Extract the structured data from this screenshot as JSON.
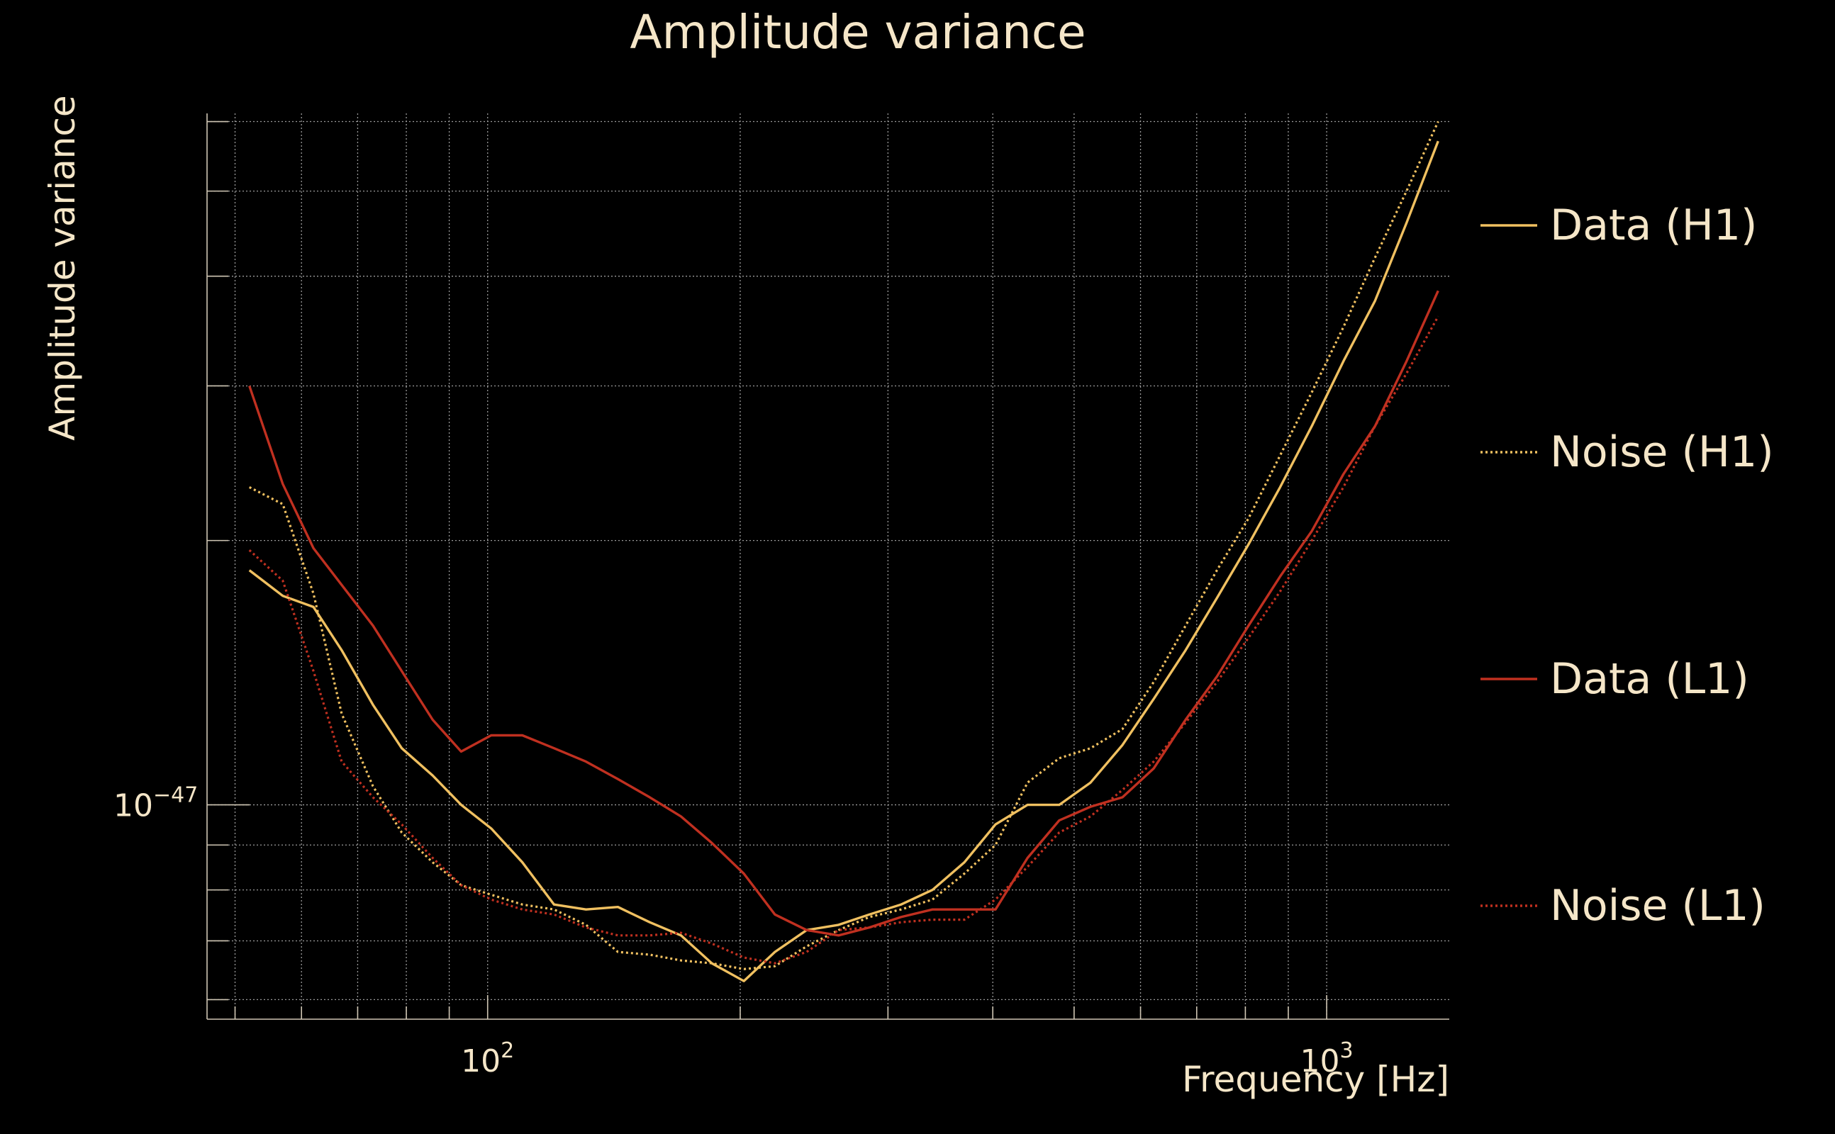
{
  "chart_data": {
    "type": "line",
    "title": "Amplitude variance",
    "xlabel": "Frequency [Hz]",
    "ylabel": "Amplitude variance",
    "xscale": "log",
    "yscale": "log",
    "xlim": [
      46.3,
      1400
    ],
    "ylim": [
      5.7e-48,
      6.13e-47
    ],
    "grid": true,
    "legend_position": "right",
    "x_tick_labels": [
      {
        "value": 100,
        "base": "10",
        "exp": "2"
      },
      {
        "value": 1000,
        "base": "10",
        "exp": "3"
      }
    ],
    "y_tick_labels": [
      {
        "value": 1e-47,
        "base": "10",
        "exp": "−47"
      }
    ],
    "x_minor_ticks": [
      50,
      60,
      70,
      80,
      90,
      200,
      300,
      400,
      500,
      600,
      700,
      800,
      900
    ],
    "y_minor_ticks": [
      6e-48,
      7e-48,
      8e-48,
      9e-48,
      2e-47,
      3e-47,
      4e-47,
      5e-47,
      6e-47
    ],
    "series": [
      {
        "name": "Data (H1)",
        "color": "#f0c060",
        "dash": "solid",
        "x": [
          52,
          57,
          62,
          67,
          73,
          79,
          86,
          93,
          101,
          110,
          120,
          131,
          143,
          156,
          170,
          185,
          202,
          220,
          240,
          262,
          285,
          311,
          339,
          370,
          403,
          440,
          480,
          523,
          571,
          622,
          679,
          740,
          807,
          880,
          960,
          1047,
          1142,
          1245,
          1358
        ],
        "y": [
          1.85e-47,
          1.73e-47,
          1.68e-47,
          1.5e-47,
          1.3e-47,
          1.16e-47,
          1.08e-47,
          1e-47,
          9.4e-48,
          8.6e-48,
          7.7e-48,
          7.6e-48,
          7.65e-48,
          7.35e-48,
          7.1e-48,
          6.6e-48,
          6.3e-48,
          6.8e-48,
          7.2e-48,
          7.3e-48,
          7.5e-48,
          7.7e-48,
          8e-48,
          8.6e-48,
          9.5e-48,
          1e-47,
          1e-47,
          1.06e-47,
          1.17e-47,
          1.32e-47,
          1.5e-47,
          1.72e-47,
          1.98e-47,
          2.3e-47,
          2.7e-47,
          3.2e-47,
          3.75e-47,
          4.6e-47,
          5.7e-47
        ]
      },
      {
        "name": "Noise (H1)",
        "color": "#f0c060",
        "dash": "dotted",
        "x": [
          52,
          57,
          62,
          67,
          73,
          79,
          86,
          93,
          101,
          110,
          120,
          131,
          143,
          156,
          170,
          185,
          202,
          220,
          240,
          262,
          285,
          311,
          339,
          370,
          403,
          440,
          480,
          523,
          571,
          622,
          679,
          740,
          807,
          880,
          960,
          1047,
          1142,
          1245,
          1358
        ],
        "y": [
          2.3e-47,
          2.2e-47,
          1.74e-47,
          1.27e-47,
          1.05e-47,
          9.3e-48,
          8.6e-48,
          8.1e-48,
          7.9e-48,
          7.7e-48,
          7.6e-48,
          7.3e-48,
          6.8e-48,
          6.75e-48,
          6.65e-48,
          6.6e-48,
          6.5e-48,
          6.55e-48,
          6.9e-48,
          7.2e-48,
          7.45e-48,
          7.6e-48,
          7.8e-48,
          8.35e-48,
          9e-48,
          1.06e-47,
          1.13e-47,
          1.16e-47,
          1.22e-47,
          1.38e-47,
          1.6e-47,
          1.85e-47,
          2.12e-47,
          2.5e-47,
          2.95e-47,
          3.5e-47,
          4.2e-47,
          5e-47,
          6e-47
        ]
      },
      {
        "name": "Data (L1)",
        "color": "#c03020",
        "dash": "solid",
        "x": [
          52,
          57,
          62,
          67,
          73,
          79,
          86,
          93,
          101,
          110,
          120,
          131,
          143,
          156,
          170,
          185,
          202,
          220,
          240,
          262,
          285,
          311,
          339,
          370,
          403,
          440,
          480,
          523,
          571,
          622,
          679,
          740,
          807,
          880,
          960,
          1047,
          1142,
          1245,
          1358
        ],
        "y": [
          3e-47,
          2.32e-47,
          1.96e-47,
          1.78e-47,
          1.6e-47,
          1.42e-47,
          1.25e-47,
          1.15e-47,
          1.2e-47,
          1.2e-47,
          1.16e-47,
          1.12e-47,
          1.07e-47,
          1.02e-47,
          9.7e-48,
          9.05e-48,
          8.35e-48,
          7.5e-48,
          7.2e-48,
          7.1e-48,
          7.25e-48,
          7.45e-48,
          7.6e-48,
          7.6e-48,
          7.6e-48,
          8.7e-48,
          9.6e-48,
          9.95e-48,
          1.02e-47,
          1.1e-47,
          1.25e-47,
          1.4e-47,
          1.6e-47,
          1.82e-47,
          2.05e-47,
          2.38e-47,
          2.7e-47,
          3.2e-47,
          3.85e-47
        ]
      },
      {
        "name": "Noise (L1)",
        "color": "#c03020",
        "dash": "dotted",
        "x": [
          52,
          57,
          62,
          67,
          73,
          79,
          86,
          93,
          101,
          110,
          120,
          131,
          143,
          156,
          170,
          185,
          202,
          220,
          240,
          262,
          285,
          311,
          339,
          370,
          403,
          440,
          480,
          523,
          571,
          622,
          679,
          740,
          807,
          880,
          960,
          1047,
          1142,
          1245,
          1358
        ],
        "y": [
          1.95e-47,
          1.8e-47,
          1.42e-47,
          1.12e-47,
          1.02e-47,
          9.5e-48,
          8.7e-48,
          8.1e-48,
          7.8e-48,
          7.6e-48,
          7.5e-48,
          7.25e-48,
          7.1e-48,
          7.1e-48,
          7.15e-48,
          6.95e-48,
          6.7e-48,
          6.6e-48,
          6.8e-48,
          7.2e-48,
          7.25e-48,
          7.35e-48,
          7.4e-48,
          7.4e-48,
          7.8e-48,
          8.5e-48,
          9.3e-48,
          9.7e-48,
          1.04e-47,
          1.12e-47,
          1.24e-47,
          1.38e-47,
          1.55e-47,
          1.75e-47,
          2e-47,
          2.3e-47,
          2.7e-47,
          3.1e-47,
          3.6e-47
        ]
      }
    ]
  }
}
